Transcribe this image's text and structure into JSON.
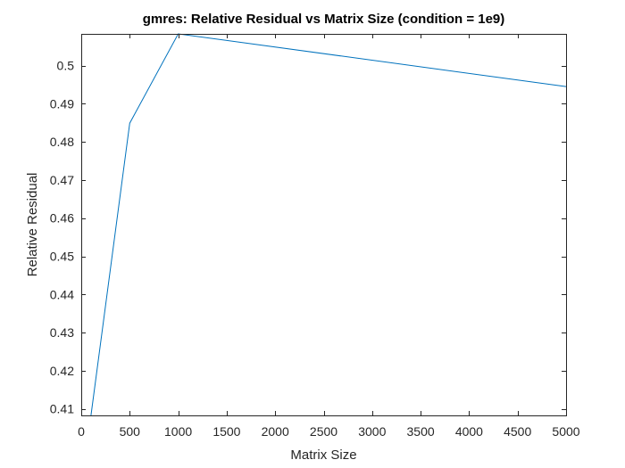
{
  "chart_data": {
    "type": "line",
    "title": "gmres: Relative Residual vs Matrix Size (condition = 1e9)",
    "xlabel": "Matrix Size",
    "ylabel": "Relative Residual",
    "xlim": [
      0,
      5000
    ],
    "ylim": [
      0.4083,
      0.5083
    ],
    "x_ticks": [
      0,
      500,
      1000,
      1500,
      2000,
      2500,
      3000,
      3500,
      4000,
      4500,
      5000
    ],
    "x_tick_labels": [
      "0",
      "500",
      "1000",
      "1500",
      "2000",
      "2500",
      "3000",
      "3500",
      "4000",
      "4500",
      "5000"
    ],
    "y_ticks": [
      0.41,
      0.42,
      0.43,
      0.44,
      0.45,
      0.46,
      0.47,
      0.48,
      0.49,
      0.5
    ],
    "y_tick_labels": [
      "0.41",
      "0.42",
      "0.43",
      "0.44",
      "0.45",
      "0.46",
      "0.47",
      "0.48",
      "0.49",
      "0.5"
    ],
    "grid": false,
    "box": true,
    "series": [
      {
        "color": "#0072bd",
        "x": [
          100,
          500,
          1000,
          5000
        ],
        "y": [
          0.4083,
          0.4849,
          0.5083,
          0.4945
        ]
      }
    ]
  }
}
